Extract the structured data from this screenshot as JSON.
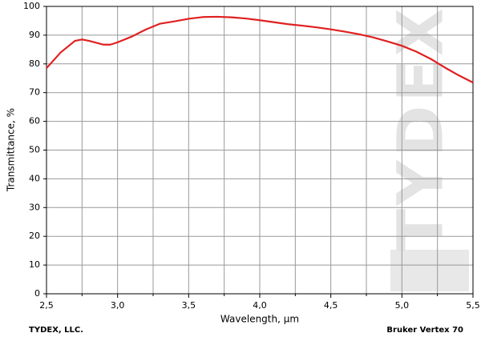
{
  "chart_data": {
    "type": "line",
    "x_label": "Wavelength, µm",
    "y_label": "Transmittance, %",
    "footer_left": "TYDEX, LLC.",
    "footer_right": "Bruker Vertex 70",
    "watermark": "TYDEX",
    "x": [
      2.5,
      2.6,
      2.7,
      2.75,
      2.8,
      2.9,
      2.95,
      3.0,
      3.1,
      3.2,
      3.3,
      3.4,
      3.5,
      3.6,
      3.7,
      3.8,
      3.9,
      4.0,
      4.1,
      4.2,
      4.3,
      4.4,
      4.5,
      4.6,
      4.7,
      4.8,
      4.9,
      5.0,
      5.1,
      5.2,
      5.3,
      5.4,
      5.5
    ],
    "series": [
      {
        "color": "#e02020",
        "values": [
          78.5,
          84,
          88,
          88.5,
          88,
          86.7,
          86.7,
          87.5,
          89.5,
          92,
          94,
          94.8,
          95.7,
          96.3,
          96.4,
          96.2,
          95.8,
          95.2,
          94.5,
          93.8,
          93.3,
          92.7,
          92,
          91.2,
          90.3,
          89.2,
          87.8,
          86.3,
          84.3,
          81.8,
          78.8,
          76,
          73.5
        ]
      }
    ],
    "xlim": [
      2.5,
      5.5
    ],
    "ylim": [
      0,
      100
    ],
    "xticks": [
      {
        "value": 2.5,
        "label": "2,5"
      },
      {
        "value": 3.0,
        "label": "3,0"
      },
      {
        "value": 3.5,
        "label": "3,5"
      },
      {
        "value": 4.0,
        "label": "4,0"
      },
      {
        "value": 4.5,
        "label": "4,5"
      },
      {
        "value": 5.0,
        "label": "5,0"
      },
      {
        "value": 5.5,
        "label": "5,5"
      }
    ],
    "x_minor_grid": [
      2.75,
      3.25,
      3.75,
      4.25,
      4.75,
      5.25
    ],
    "yticks": [
      0,
      10,
      20,
      30,
      40,
      50,
      60,
      70,
      80,
      90,
      100
    ],
    "grid": true
  }
}
